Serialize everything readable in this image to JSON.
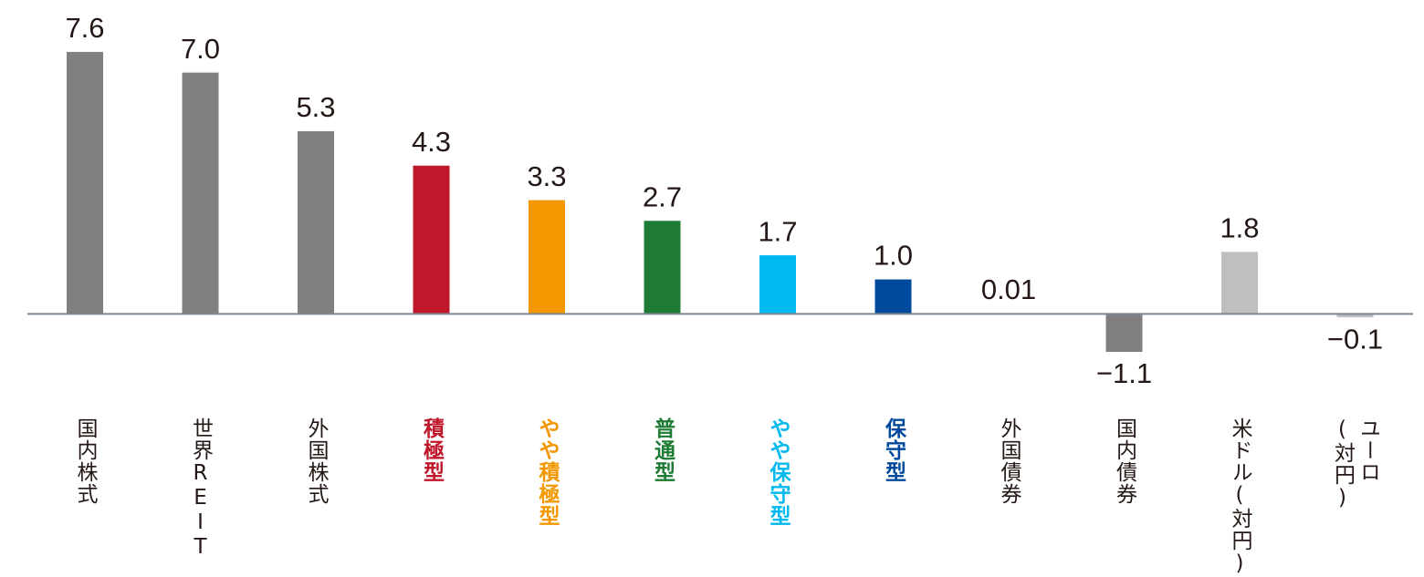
{
  "chart_data": {
    "type": "bar",
    "categories": [
      "国内株式",
      "世界REIT",
      "外国株式",
      "積極型",
      "やや積極型",
      "普通型",
      "やや保守型",
      "保守型",
      "外国債券",
      "国内債券",
      "米ドル(対円)",
      "ユーロ\n(対円)"
    ],
    "values": [
      7.6,
      7.0,
      5.3,
      4.3,
      3.3,
      2.7,
      1.7,
      1.0,
      0.01,
      -1.1,
      1.8,
      -0.1
    ],
    "value_labels": [
      "7.6",
      "7.0",
      "5.3",
      "4.3",
      "3.3",
      "2.7",
      "1.7",
      "1.0",
      "0.01",
      "−1.1",
      "1.8",
      "−0.1"
    ],
    "colors": [
      "#808080",
      "#808080",
      "#808080",
      "#c0182a",
      "#f39800",
      "#1e7b34",
      "#00b9ef",
      "#004a9d",
      "#808080",
      "#808080",
      "#bfbfbf",
      "#bfbfbf"
    ],
    "label_colors": [
      "#231815",
      "#231815",
      "#231815",
      "#c0182a",
      "#f39800",
      "#1e7b34",
      "#00b9ef",
      "#004a9d",
      "#231815",
      "#231815",
      "#231815",
      "#231815"
    ],
    "ylim": [
      -2,
      9
    ]
  }
}
